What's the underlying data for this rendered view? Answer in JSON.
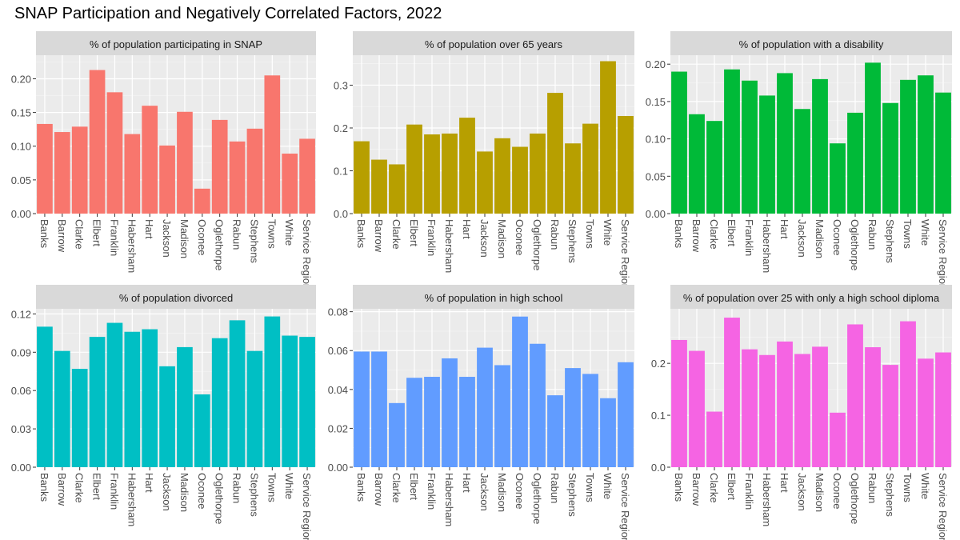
{
  "title": "SNAP Participation and Negatively Correlated Factors, 2022",
  "chart_data": [
    {
      "type": "bar",
      "title": "% of population participating in SNAP",
      "color": "#F8766D",
      "categories": [
        "Banks",
        "Barrow",
        "Clarke",
        "Elbert",
        "Franklin",
        "Habersham",
        "Hart",
        "Jackson",
        "Madison",
        "Oconee",
        "Oglethorpe",
        "Rabun",
        "Stephens",
        "Towns",
        "White",
        "Service Region"
      ],
      "values": [
        0.133,
        0.121,
        0.129,
        0.213,
        0.18,
        0.118,
        0.16,
        0.101,
        0.151,
        0.037,
        0.139,
        0.107,
        0.126,
        0.205,
        0.089,
        0.111
      ],
      "ylim": [
        0,
        0.235
      ],
      "yticks": [
        0.0,
        0.05,
        0.1,
        0.15,
        0.2
      ],
      "ytick_labels": [
        "0.00",
        "0.05",
        "0.10",
        "0.15",
        "0.20"
      ]
    },
    {
      "type": "bar",
      "title": "% of population over 65 years",
      "color": "#B79F00",
      "categories": [
        "Banks",
        "Barrow",
        "Clarke",
        "Elbert",
        "Franklin",
        "Habersham",
        "Hart",
        "Jackson",
        "Madison",
        "Oconee",
        "Oglethorpe",
        "Rabun",
        "Stephens",
        "Towns",
        "White",
        "Service Region"
      ],
      "values": [
        0.169,
        0.126,
        0.115,
        0.208,
        0.185,
        0.187,
        0.224,
        0.145,
        0.176,
        0.156,
        0.187,
        0.282,
        0.164,
        0.21,
        0.356,
        0.228
      ],
      "ylim": [
        0,
        0.37
      ],
      "yticks": [
        0.0,
        0.1,
        0.2,
        0.3
      ],
      "ytick_labels": [
        "0.0",
        "0.1",
        "0.2",
        "0.3"
      ]
    },
    {
      "type": "bar",
      "title": "% of population with a disability",
      "color": "#00BA38",
      "categories": [
        "Banks",
        "Barrow",
        "Clarke",
        "Elbert",
        "Franklin",
        "Habersham",
        "Hart",
        "Jackson",
        "Madison",
        "Oconee",
        "Oglethorpe",
        "Rabun",
        "Stephens",
        "Towns",
        "White",
        "Service Region"
      ],
      "values": [
        0.19,
        0.133,
        0.124,
        0.193,
        0.178,
        0.158,
        0.188,
        0.14,
        0.18,
        0.094,
        0.135,
        0.202,
        0.148,
        0.179,
        0.185,
        0.162
      ],
      "ylim": [
        0,
        0.212
      ],
      "yticks": [
        0.0,
        0.05,
        0.1,
        0.15,
        0.2
      ],
      "ytick_labels": [
        "0.00",
        "0.05",
        "0.10",
        "0.15",
        "0.20"
      ]
    },
    {
      "type": "bar",
      "title": "% of population divorced",
      "color": "#00BFC4",
      "categories": [
        "Banks",
        "Barrow",
        "Clarke",
        "Elbert",
        "Franklin",
        "Habersham",
        "Hart",
        "Jackson",
        "Madison",
        "Oconee",
        "Oglethorpe",
        "Rabun",
        "Stephens",
        "Towns",
        "White",
        "Service Region"
      ],
      "values": [
        0.11,
        0.091,
        0.077,
        0.102,
        0.113,
        0.106,
        0.108,
        0.079,
        0.094,
        0.057,
        0.101,
        0.115,
        0.091,
        0.118,
        0.103,
        0.102
      ],
      "ylim": [
        0,
        0.124
      ],
      "yticks": [
        0.0,
        0.03,
        0.06,
        0.09,
        0.12
      ],
      "ytick_labels": [
        "0.00",
        "0.03",
        "0.06",
        "0.09",
        "0.12"
      ]
    },
    {
      "type": "bar",
      "title": "% of population in high school",
      "color": "#619CFF",
      "categories": [
        "Banks",
        "Barrow",
        "Clarke",
        "Elbert",
        "Franklin",
        "Habersham",
        "Hart",
        "Jackson",
        "Madison",
        "Oconee",
        "Oglethorpe",
        "Rabun",
        "Stephens",
        "Towns",
        "White",
        "Service Region"
      ],
      "values": [
        0.0595,
        0.0595,
        0.033,
        0.046,
        0.0465,
        0.056,
        0.0465,
        0.0615,
        0.0525,
        0.0775,
        0.0635,
        0.037,
        0.051,
        0.048,
        0.0355,
        0.054
      ],
      "ylim": [
        0,
        0.0815
      ],
      "yticks": [
        0.0,
        0.02,
        0.04,
        0.06,
        0.08
      ],
      "ytick_labels": [
        "0.00",
        "0.02",
        "0.04",
        "0.06",
        "0.08"
      ]
    },
    {
      "type": "bar",
      "title": "% of population over 25 with only a high school diploma",
      "color": "#F564E3",
      "categories": [
        "Banks",
        "Barrow",
        "Clarke",
        "Elbert",
        "Franklin",
        "Habersham",
        "Hart",
        "Jackson",
        "Madison",
        "Oconee",
        "Oglethorpe",
        "Rabun",
        "Stephens",
        "Towns",
        "White",
        "Service Region"
      ],
      "values": [
        0.245,
        0.224,
        0.107,
        0.288,
        0.227,
        0.216,
        0.242,
        0.218,
        0.232,
        0.105,
        0.275,
        0.231,
        0.197,
        0.281,
        0.209,
        0.221
      ],
      "ylim": [
        0,
        0.305
      ],
      "yticks": [
        0.0,
        0.1,
        0.2
      ],
      "ytick_labels": [
        "0.0",
        "0.1",
        "0.2"
      ]
    }
  ]
}
